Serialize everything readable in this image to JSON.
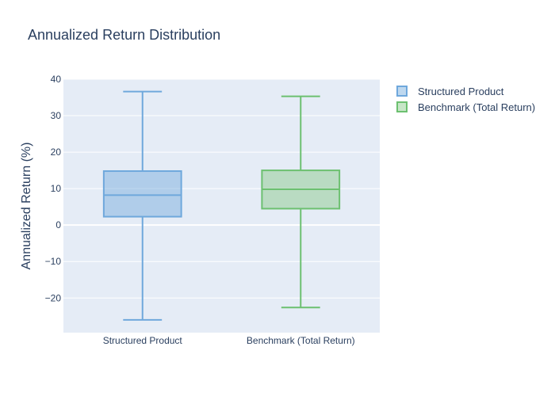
{
  "chart_data": {
    "type": "box",
    "title": "Annualized Return Distribution",
    "xlabel": "",
    "ylabel": "Annualized Return (%)",
    "ylim": [
      -29.5,
      40
    ],
    "yticks": [
      40,
      30,
      20,
      10,
      0,
      -10,
      -20
    ],
    "ytick_labels": [
      "40",
      "30",
      "20",
      "10",
      "0",
      "−10",
      "−20"
    ],
    "grid": true,
    "legend_position": "top-right",
    "categories": [
      "Structured Product",
      "Benchmark (Total Return)"
    ],
    "series": [
      {
        "name": "Structured Product",
        "color": "#6fa8dc",
        "fill": "rgba(111,168,220,0.45)",
        "min": -26.0,
        "q1": 2.3,
        "median": 8.2,
        "q3": 14.8,
        "max": 36.6
      },
      {
        "name": "Benchmark (Total Return)",
        "color": "#6cc070",
        "fill": "rgba(130,200,130,0.45)",
        "min": -22.6,
        "q1": 4.5,
        "median": 9.8,
        "q3": 15.0,
        "max": 35.3
      }
    ]
  }
}
